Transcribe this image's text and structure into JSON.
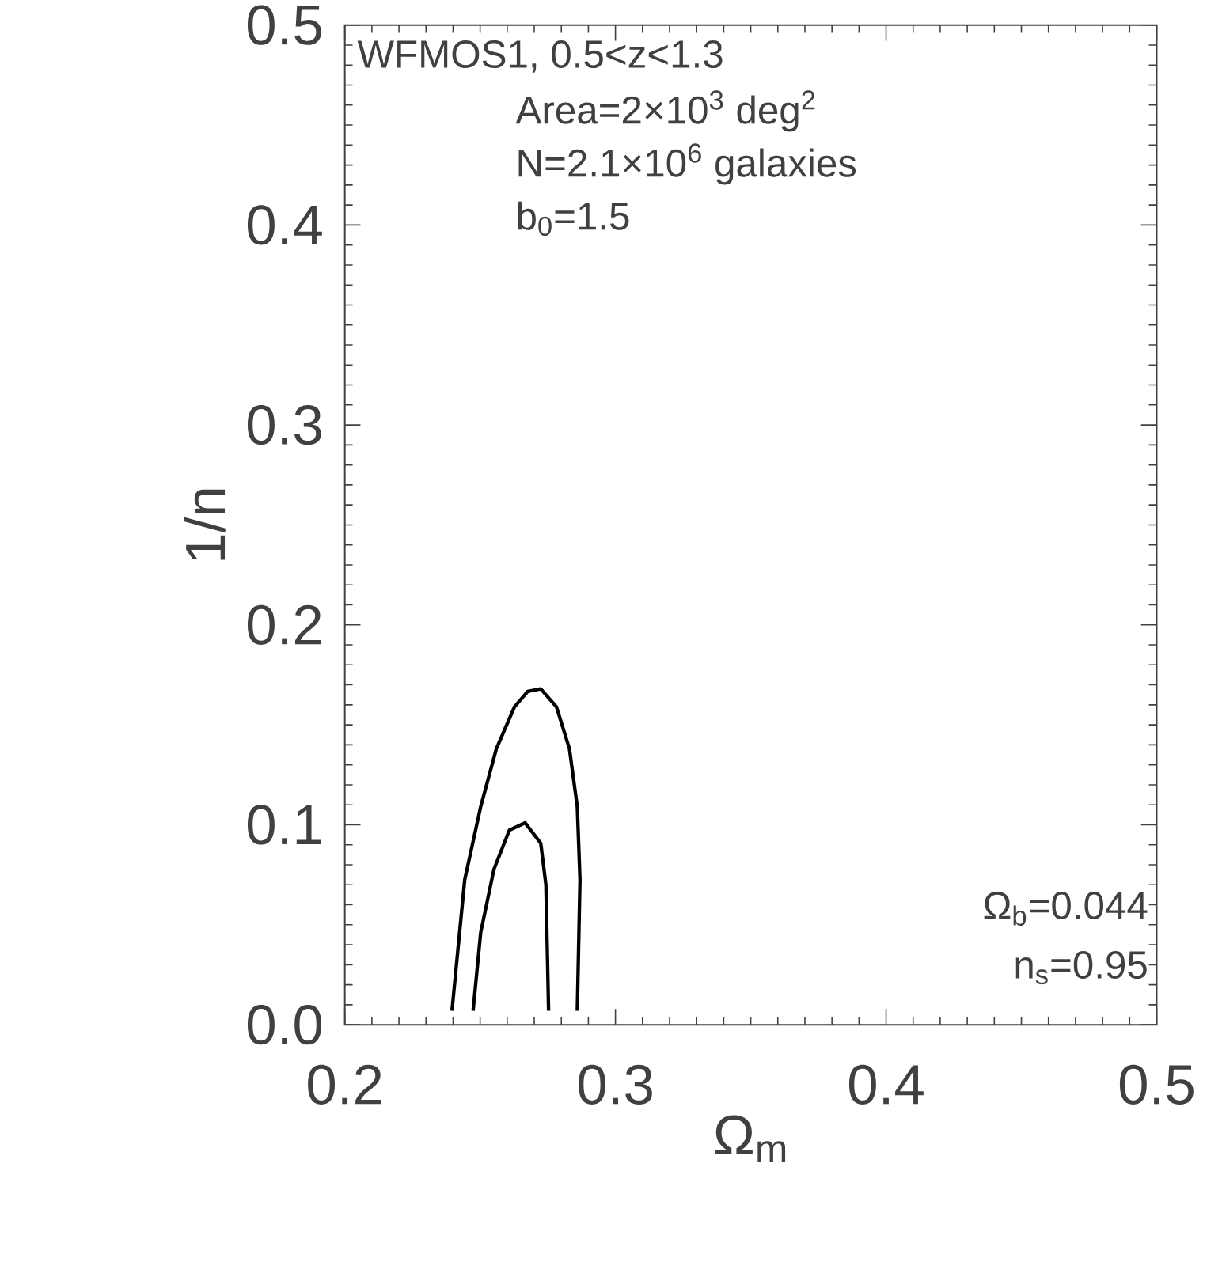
{
  "chart_data": {
    "type": "line",
    "xlabel": "Ω$_{m}$",
    "ylabel": "1/n",
    "xlim": [
      0.2,
      0.5
    ],
    "ylim": [
      0.0,
      0.5
    ],
    "xticks": [
      {
        "value": 0.2,
        "label": "0.2"
      },
      {
        "value": 0.3,
        "label": "0.3"
      },
      {
        "value": 0.4,
        "label": "0.4"
      },
      {
        "value": 0.5,
        "label": "0.5"
      }
    ],
    "yticks": [
      {
        "value": 0.0,
        "label": "0.0"
      },
      {
        "value": 0.1,
        "label": "0.1"
      },
      {
        "value": 0.2,
        "label": "0.2"
      },
      {
        "value": 0.3,
        "label": "0.3"
      },
      {
        "value": 0.4,
        "label": "0.4"
      },
      {
        "value": 0.5,
        "label": "0.5"
      }
    ],
    "annotations": [
      "WFMOS1, 0.5<z<1.3",
      "Area=2×10$^{3}$ deg$^{2}$",
      "N=2.1×10$^{6}$ galaxies",
      "b$_{0}$=1.5",
      "Ω$_{b}$=0.044",
      "n$_{s}$=0.95"
    ],
    "marker": "none",
    "line_style": "solid",
    "grid": false,
    "legend": false,
    "series": [
      {
        "color": "#000000",
        "x": [
          0.2396,
          0.2443,
          0.2502,
          0.256,
          0.2627,
          0.2676,
          0.2724,
          0.2782,
          0.283,
          0.2859,
          0.2869,
          0.2859
        ],
        "values": [
          0.007,
          0.0725,
          0.109,
          0.138,
          0.159,
          0.1667,
          0.168,
          0.159,
          0.138,
          0.109,
          0.0725,
          0.007
        ]
      },
      {
        "color": "#000000",
        "x": [
          0.2474,
          0.2502,
          0.2551,
          0.2608,
          0.2666,
          0.2724,
          0.2743,
          0.2753
        ],
        "values": [
          0.007,
          0.046,
          0.0777,
          0.0973,
          0.101,
          0.0908,
          0.07,
          0.007
        ]
      }
    ]
  }
}
